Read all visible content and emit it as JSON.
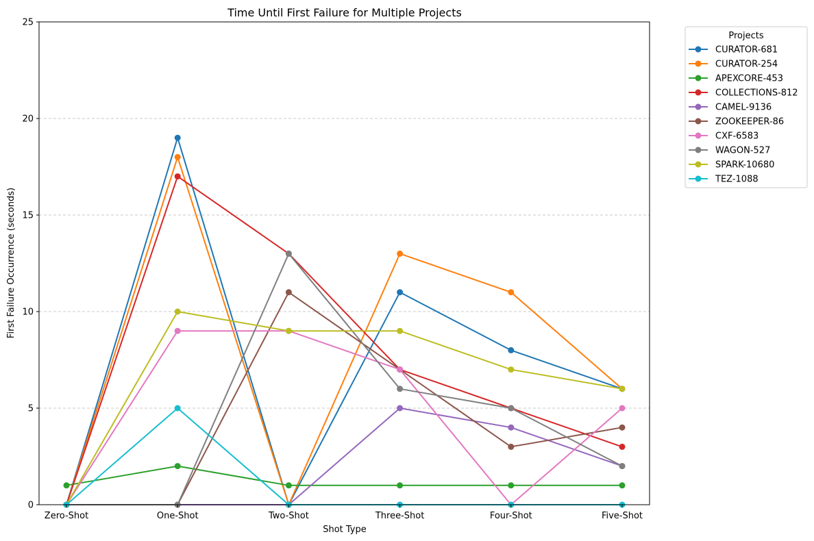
{
  "chart_data": {
    "type": "line",
    "title": "Time Until First Failure for Multiple Projects",
    "xlabel": "Shot Type",
    "ylabel": "First Failure Occurrence (seconds)",
    "categories": [
      "Zero-Shot",
      "One-Shot",
      "Two-Shot",
      "Three-Shot",
      "Four-Shot",
      "Five-Shot"
    ],
    "ylim": [
      0,
      25
    ],
    "yticks": [
      "0",
      "5",
      "10",
      "15",
      "20",
      "25"
    ],
    "grid": "y-dashed",
    "legend": {
      "title": "Projects",
      "placement": "outside-top-right"
    },
    "series": [
      {
        "name": "CURATOR-681",
        "color": "#1f77b4",
        "values": [
          0,
          19,
          0,
          11,
          8,
          6
        ]
      },
      {
        "name": "CURATOR-254",
        "color": "#ff7f0e",
        "values": [
          0,
          18,
          0,
          13,
          11,
          6
        ]
      },
      {
        "name": "APEXCORE-453",
        "color": "#2ca02c",
        "values": [
          1,
          2,
          1,
          1,
          1,
          1
        ]
      },
      {
        "name": "COLLECTIONS-812",
        "color": "#d62728",
        "values": [
          0,
          17,
          13,
          7,
          5,
          3
        ]
      },
      {
        "name": "CAMEL-9136",
        "color": "#9467bd",
        "values": [
          0,
          0,
          0,
          5,
          4,
          2
        ]
      },
      {
        "name": "ZOOKEEPER-86",
        "color": "#8c564b",
        "values": [
          0,
          0,
          11,
          7,
          3,
          4
        ]
      },
      {
        "name": "CXF-6583",
        "color": "#e377c2",
        "values": [
          0,
          9,
          9,
          7,
          0,
          5
        ]
      },
      {
        "name": "WAGON-527",
        "color": "#7f7f7f",
        "values": [
          0,
          0,
          13,
          6,
          5,
          2
        ]
      },
      {
        "name": "SPARK-10680",
        "color": "#bcbd22",
        "values": [
          0,
          10,
          9,
          9,
          7,
          6
        ]
      },
      {
        "name": "TEZ-1088",
        "color": "#17becf",
        "values": [
          0,
          5,
          0,
          0,
          0,
          0
        ]
      }
    ]
  }
}
